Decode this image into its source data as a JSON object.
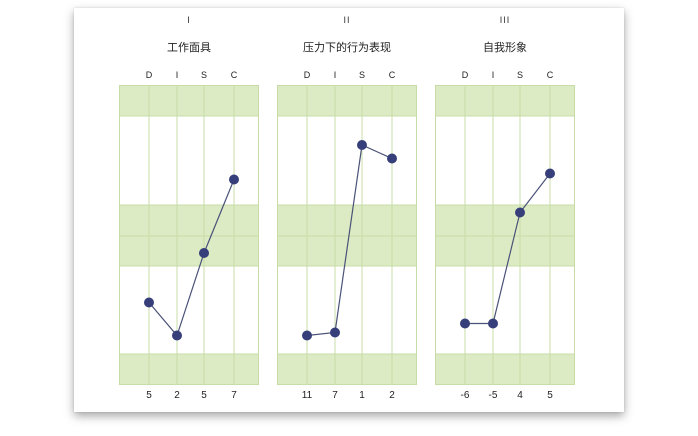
{
  "chart_data": [
    {
      "type": "line",
      "numeral": "I",
      "title": "工作面具",
      "categories": [
        "D",
        "I",
        "S",
        "C"
      ],
      "values": [
        5,
        2,
        5,
        7
      ],
      "point_levels": [
        0.275,
        0.165,
        0.44,
        0.685
      ]
    },
    {
      "type": "line",
      "numeral": "II",
      "title": "压力下的行为表现",
      "categories": [
        "D",
        "I",
        "S",
        "C"
      ],
      "values": [
        11,
        7,
        1,
        2
      ],
      "point_levels": [
        0.165,
        0.175,
        0.8,
        0.755
      ]
    },
    {
      "type": "line",
      "numeral": "III",
      "title": "自我形象",
      "categories": [
        "D",
        "I",
        "S",
        "C"
      ],
      "values": [
        -6,
        -5,
        4,
        5
      ],
      "point_levels": [
        0.205,
        0.205,
        0.575,
        0.705
      ]
    }
  ],
  "colors": {
    "band": "#dcebc4",
    "grid": "#c8dca7",
    "line": "#4a5278",
    "point": "#363f7a"
  }
}
